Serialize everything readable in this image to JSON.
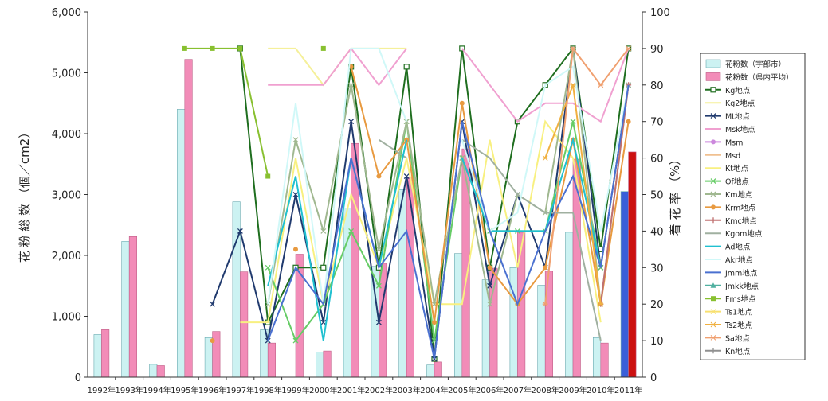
{
  "chart_data": {
    "type": "bar+line",
    "categories": [
      "1992年",
      "1993年",
      "1994年",
      "1995年",
      "1996年",
      "1997年",
      "1998年",
      "1999年",
      "2000年",
      "2001年",
      "2002年",
      "2003年",
      "2004年",
      "2005年",
      "2006年",
      "2007年",
      "2008年",
      "2009年",
      "2010年",
      "2011年"
    ],
    "y_left": {
      "label": "花 粉 総 数 （個／cm2）",
      "range": [
        0,
        6000
      ],
      "ticks": [
        "0",
        "1,000",
        "2,000",
        "3,000",
        "4,000",
        "5,000",
        "6,000"
      ],
      "tick_values": [
        0,
        1000,
        2000,
        3000,
        4000,
        5000,
        6000
      ]
    },
    "y_right": {
      "label": "着 花 率 （%）",
      "range": [
        0,
        100
      ],
      "ticks": [
        "0",
        "10",
        "20",
        "30",
        "40",
        "50",
        "60",
        "70",
        "80",
        "90",
        "100"
      ],
      "tick_values": [
        0,
        10,
        20,
        30,
        40,
        50,
        60,
        70,
        80,
        90,
        100
      ]
    },
    "bars": [
      {
        "name": "花粉数（宇部市）",
        "color": "#ccf2f2",
        "stroke": "#6aaab0",
        "values": [
          700,
          2230,
          210,
          4400,
          650,
          2880,
          780,
          null,
          410,
          2780,
          1820,
          3080,
          200,
          2030,
          1600,
          1800,
          1510,
          2380,
          650,
          3050
        ],
        "highlight": {
          "index": 19,
          "color": "#3a5fd8"
        }
      },
      {
        "name": "花粉数（県内平均）",
        "color": "#f28cb8",
        "stroke": "#c06088",
        "values": [
          780,
          2310,
          190,
          5220,
          750,
          1730,
          560,
          2020,
          430,
          3840,
          1870,
          3290,
          250,
          3750,
          1790,
          2380,
          1740,
          3580,
          560,
          3700
        ],
        "highlight": {
          "index": 19,
          "color": "#cc1010"
        }
      }
    ],
    "series": [
      {
        "name": "Kg地点",
        "color": "#1f6e1f",
        "marker": "square-open",
        "values": [
          null,
          null,
          null,
          null,
          null,
          90,
          15,
          30,
          30,
          85,
          30,
          85,
          5,
          90,
          30,
          70,
          80,
          90,
          35,
          90
        ]
      },
      {
        "name": "Kg2地点",
        "color": "#f5f09a",
        "marker": "line",
        "values": [
          null,
          null,
          null,
          null,
          null,
          null,
          90,
          90,
          80,
          90,
          90,
          90,
          null,
          null,
          null,
          null,
          null,
          null,
          null,
          null
        ]
      },
      {
        "name": "Mt地点",
        "color": "#203a6e",
        "marker": "x",
        "values": [
          null,
          null,
          null,
          null,
          20,
          40,
          10,
          50,
          15,
          70,
          15,
          55,
          5,
          70,
          25,
          50,
          30,
          90,
          30,
          80
        ]
      },
      {
        "name": "Msk地点",
        "color": "#f0a0d0",
        "marker": "line",
        "values": [
          null,
          null,
          null,
          null,
          null,
          null,
          80,
          80,
          80,
          90,
          80,
          90,
          null,
          90,
          80,
          70,
          75,
          75,
          70,
          90
        ]
      },
      {
        "name": "Msm",
        "color": "#cc88dd",
        "marker": "circle",
        "values": [
          null,
          null,
          null,
          null,
          null,
          null,
          null,
          null,
          null,
          null,
          null,
          null,
          null,
          null,
          null,
          null,
          null,
          null,
          null,
          null
        ]
      },
      {
        "name": "Msd",
        "color": "#f0c090",
        "marker": "line",
        "values": [
          null,
          null,
          null,
          null,
          null,
          null,
          null,
          null,
          null,
          null,
          null,
          null,
          null,
          null,
          null,
          null,
          null,
          null,
          null,
          null
        ]
      },
      {
        "name": "Kt地点",
        "color": "#f8f080",
        "marker": "line",
        "values": [
          null,
          null,
          null,
          null,
          null,
          15,
          15,
          60,
          20,
          50,
          30,
          60,
          20,
          20,
          65,
          30,
          70,
          60,
          15,
          null
        ]
      },
      {
        "name": "Of地点",
        "color": "#66cc66",
        "marker": "x",
        "values": [
          null,
          null,
          null,
          null,
          null,
          null,
          30,
          10,
          20,
          40,
          25,
          70,
          10,
          60,
          40,
          40,
          40,
          70,
          30,
          null
        ]
      },
      {
        "name": "Km地点",
        "color": "#a0b890",
        "marker": "x",
        "values": [
          null,
          null,
          null,
          null,
          null,
          null,
          20,
          65,
          40,
          80,
          35,
          70,
          20,
          60,
          20,
          50,
          45,
          90,
          20,
          80
        ]
      },
      {
        "name": "Krm地点",
        "color": "#e89a40",
        "marker": "circle",
        "values": [
          null,
          null,
          null,
          null,
          10,
          null,
          null,
          35,
          null,
          85,
          55,
          65,
          15,
          75,
          30,
          20,
          30,
          65,
          20,
          70
        ]
      },
      {
        "name": "Kmc地点",
        "color": "#c07070",
        "marker": "plus",
        "values": [
          null,
          null,
          null,
          null,
          null,
          null,
          null,
          null,
          null,
          null,
          null,
          null,
          null,
          null,
          null,
          null,
          null,
          null,
          20,
          80
        ]
      },
      {
        "name": "Kgom地点",
        "color": "#a0b0a0",
        "marker": "line",
        "values": [
          null,
          null,
          null,
          null,
          null,
          null,
          null,
          null,
          null,
          null,
          65,
          60,
          null,
          65,
          60,
          50,
          45,
          45,
          10,
          null
        ]
      },
      {
        "name": "Ad地点",
        "color": "#20c0d0",
        "marker": "line",
        "values": [
          null,
          null,
          null,
          null,
          null,
          null,
          25,
          55,
          10,
          60,
          30,
          65,
          null,
          60,
          40,
          40,
          40,
          65,
          30,
          null
        ]
      },
      {
        "name": "Akr地点",
        "color": "#d0f8f8",
        "marker": "line",
        "values": [
          null,
          null,
          null,
          null,
          null,
          null,
          20,
          75,
          20,
          90,
          90,
          70,
          null,
          65,
          40,
          45,
          80,
          85,
          40,
          80
        ]
      },
      {
        "name": "Jmm地点",
        "color": "#4a70d0",
        "marker": "line",
        "values": [
          null,
          null,
          null,
          null,
          null,
          null,
          10,
          30,
          20,
          60,
          30,
          40,
          5,
          70,
          40,
          20,
          40,
          55,
          30,
          80
        ]
      },
      {
        "name": "Jmkk地点",
        "color": "#50b0a0",
        "marker": "triangle",
        "values": [
          null,
          null,
          null,
          null,
          null,
          null,
          null,
          null,
          null,
          null,
          null,
          null,
          null,
          null,
          null,
          null,
          null,
          null,
          null,
          null
        ]
      },
      {
        "name": "Fms地点",
        "color": "#88c030",
        "marker": "square",
        "values": [
          null,
          null,
          null,
          90,
          90,
          90,
          55,
          null,
          90,
          null,
          null,
          null,
          null,
          null,
          null,
          null,
          null,
          null,
          null,
          null
        ]
      },
      {
        "name": "Ts1地点",
        "color": "#f8e070",
        "marker": "star",
        "values": [
          null,
          null,
          null,
          null,
          null,
          null,
          null,
          null,
          null,
          null,
          null,
          null,
          null,
          null,
          null,
          null,
          null,
          null,
          null,
          null
        ]
      },
      {
        "name": "Ts2地点",
        "color": "#f0b040",
        "marker": "star",
        "values": [
          null,
          null,
          null,
          null,
          null,
          null,
          null,
          null,
          null,
          null,
          null,
          null,
          null,
          null,
          null,
          null,
          60,
          80,
          20,
          null
        ]
      },
      {
        "name": "Sa地点",
        "color": "#f0a070",
        "marker": "star",
        "values": [
          null,
          null,
          null,
          null,
          null,
          null,
          null,
          null,
          null,
          null,
          null,
          null,
          null,
          null,
          null,
          null,
          20,
          90,
          80,
          90
        ]
      },
      {
        "name": "Kn地点",
        "color": "#909090",
        "marker": "plus",
        "values": [
          null,
          null,
          null,
          null,
          null,
          null,
          null,
          null,
          null,
          null,
          null,
          null,
          null,
          null,
          null,
          null,
          null,
          null,
          null,
          null
        ]
      }
    ],
    "legend": {
      "position": "right",
      "items": [
        "花粉数（宇部市）",
        "花粉数（県内平均）",
        "Kg地点",
        "Kg2地点",
        "Mt地点",
        "Msk地点",
        "Msm",
        "Msd",
        "Kt地点",
        "Of地点",
        "Km地点",
        "Krm地点",
        "Kmc地点",
        "Kgom地点",
        "Ad地点",
        "Akr地点",
        "Jmm地点",
        "Jmkk地点",
        "Fms地点",
        "Ts1地点",
        "Ts2地点",
        "Sa地点",
        "Kn地点"
      ]
    },
    "grid": false
  }
}
